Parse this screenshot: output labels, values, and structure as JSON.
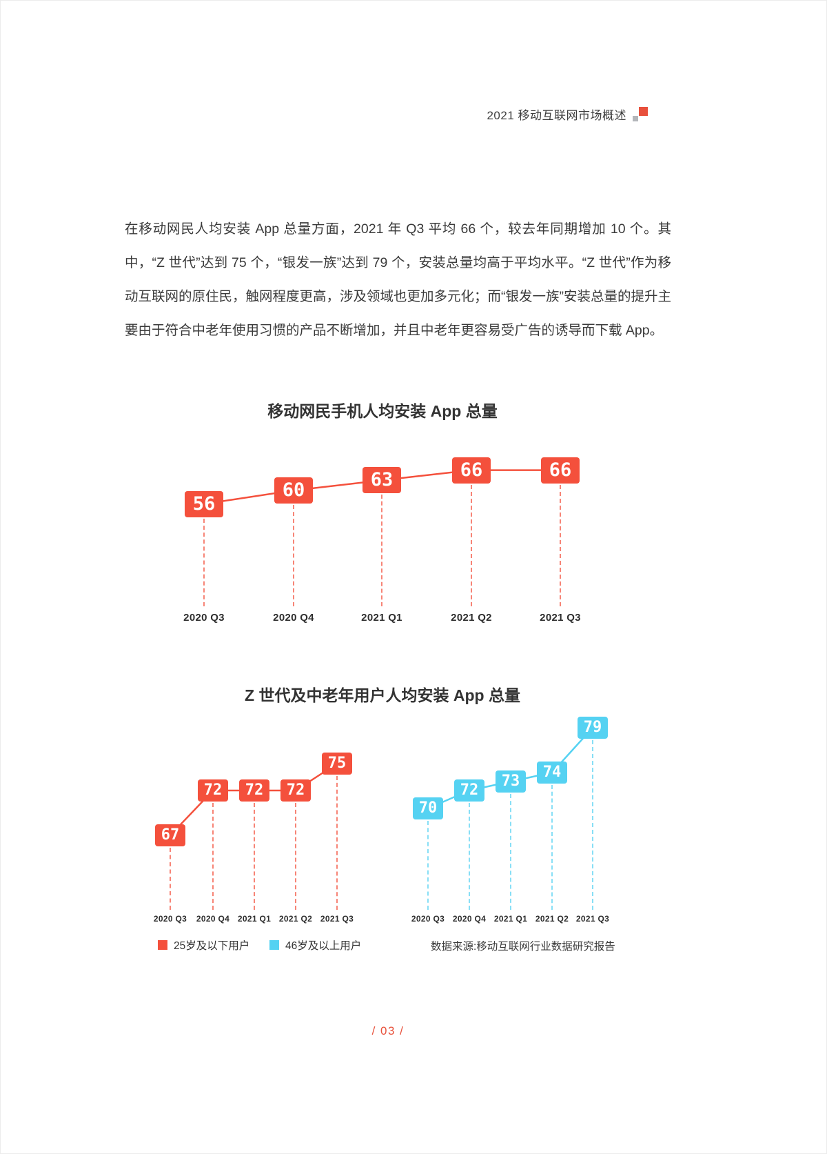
{
  "header": {
    "title": "2021 移动互联网市场概述"
  },
  "paragraph": {
    "text": "在移动网民人均安装 App 总量方面，2021 年 Q3 平均 66 个，较去年同期增加 10 个。其中，“Z 世代”达到 75 个，“银发一族”达到 79 个，安装总量均高于平均水平。“Z 世代”作为移动互联网的原住民，触网程度更高，涉及领域也更加多元化；而“银发一族”安装总量的提升主要由于符合中老年使用习惯的产品不断增加，并且中老年更容易受广告的诱导而下载 App。"
  },
  "colors": {
    "accent_red": "#F4503C",
    "accent_cyan": "#55D2F2",
    "footer_red": "#E8513B"
  },
  "chart_data": [
    {
      "type": "line",
      "title": "移动网民手机人均安装 App 总量",
      "categories": [
        "2020 Q3",
        "2020 Q4",
        "2021 Q1",
        "2021 Q2",
        "2021 Q3"
      ],
      "series": [
        {
          "values": [
            56,
            60,
            63,
            66,
            66
          ],
          "color": "#F4503C"
        }
      ],
      "value_labels": true,
      "grid": false
    },
    {
      "type": "line",
      "title": "Z 世代及中老年用户人均安装 App 总量",
      "categories": [
        "2020 Q3",
        "2020 Q4",
        "2021 Q1",
        "2021 Q2",
        "2021 Q3"
      ],
      "series": [
        {
          "name": "25岁及以下用户",
          "values": [
            67,
            72,
            72,
            72,
            75
          ],
          "color": "#F4503C"
        },
        {
          "name": "46岁及以上用户",
          "values": [
            70,
            72,
            73,
            74,
            79
          ],
          "color": "#55D2F2"
        }
      ],
      "legend_position": "bottom",
      "value_labels": true,
      "grid": false,
      "source": "数据来源:移动互联网行业数据研究报告"
    }
  ],
  "page": {
    "footer": "/ 03 /"
  }
}
